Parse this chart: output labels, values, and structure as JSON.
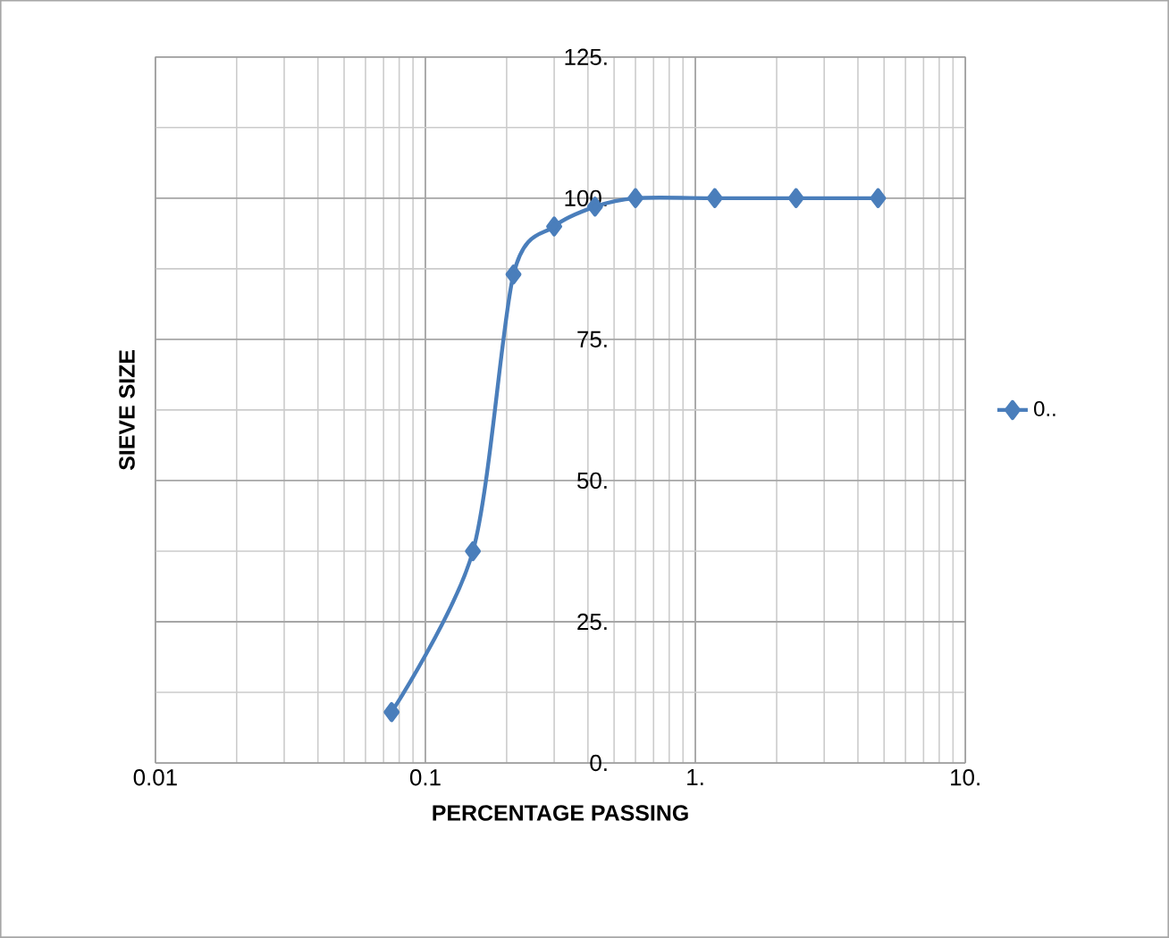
{
  "chart_data": {
    "type": "line",
    "xlabel": "PERCENTAGE PASSING",
    "ylabel": "SIEVE SIZE",
    "log": "x",
    "xlim": [
      0.01,
      10
    ],
    "ylim": [
      0,
      125
    ],
    "xticks": [
      0.01,
      0.1,
      {
        "value": 1,
        "label": "1."
      },
      {
        "value": 10,
        "label": "10."
      }
    ],
    "yticks": [
      {
        "value": 0,
        "label": "0."
      },
      {
        "value": 25,
        "label": "25."
      },
      {
        "value": 50,
        "label": "50."
      },
      {
        "value": 75,
        "label": "75."
      },
      {
        "value": 100,
        "label": "100."
      },
      {
        "value": 125,
        "label": "125."
      }
    ],
    "grid": true,
    "legend": "right",
    "marker": "diamond",
    "series": [
      {
        "name": "0..",
        "color": "#4a7ebb",
        "x": [
          0.075,
          0.15,
          0.212,
          0.3,
          0.425,
          0.6,
          1.18,
          2.36,
          4.75
        ],
        "values": [
          9,
          37.5,
          86.5,
          95,
          98.5,
          100,
          100,
          100,
          100
        ]
      }
    ]
  }
}
